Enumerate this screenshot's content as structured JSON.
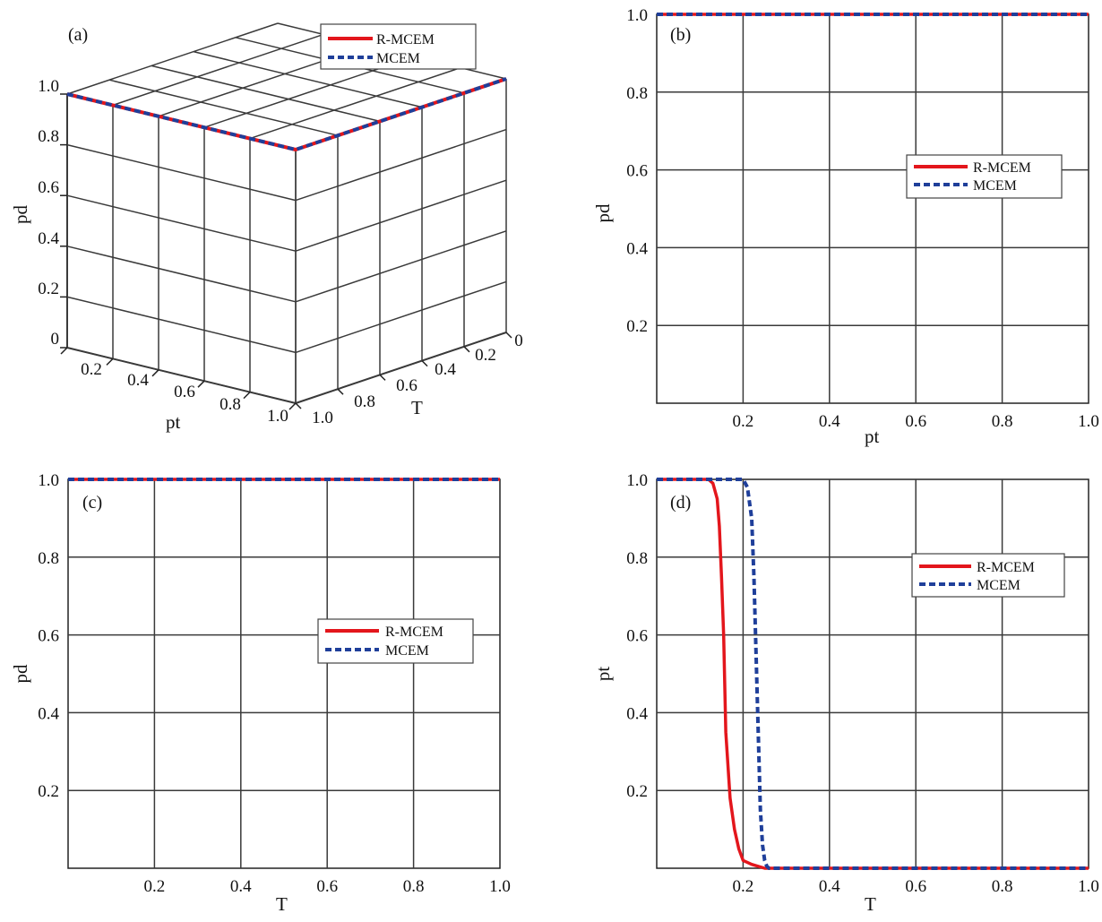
{
  "colors": {
    "r_mcem": "#e3161c",
    "mcem": "#1f3f9a",
    "grid": "#3a3a3a",
    "axis": "#222222"
  },
  "legend_labels": [
    "R-MCEM",
    "MCEM"
  ],
  "chart_data": [
    {
      "id": "a",
      "panel_label": "(a)",
      "type": "line",
      "projection": "3d",
      "xlabel": "pt",
      "ylabel": "T",
      "zlabel": "pd",
      "xticks": [
        "0.2",
        "0.4",
        "0.6",
        "0.8",
        "1.0"
      ],
      "yticks": [
        "0",
        "0.2",
        "0.4",
        "0.6",
        "0.8",
        "1.0"
      ],
      "zticks": [
        "0",
        "0.2",
        "0.4",
        "0.6",
        "0.8",
        "1.0"
      ],
      "xlim": [
        0,
        1
      ],
      "ylim": [
        0,
        1
      ],
      "zlim": [
        0,
        1
      ],
      "grid": true,
      "legend_position": "top-right",
      "series": [
        {
          "name": "R-MCEM",
          "style": "solid",
          "points": [
            [
              0,
              1,
              1
            ],
            [
              1,
              1,
              1
            ],
            [
              1,
              0.2,
              1
            ],
            [
              1,
              0,
              1
            ]
          ]
        },
        {
          "name": "MCEM",
          "style": "dashed",
          "points": [
            [
              0,
              1,
              1
            ],
            [
              1,
              1,
              1
            ],
            [
              1,
              0.25,
              1
            ],
            [
              1,
              0,
              1
            ]
          ]
        }
      ]
    },
    {
      "id": "b",
      "panel_label": "(b)",
      "type": "line",
      "xlabel": "pt",
      "ylabel": "pd",
      "xlim": [
        0,
        1
      ],
      "ylim": [
        0,
        1
      ],
      "xticks": [
        "0.2",
        "0.4",
        "0.6",
        "0.8",
        "1.0"
      ],
      "yticks": [
        "0.2",
        "0.4",
        "0.6",
        "0.8",
        "1.0"
      ],
      "grid": true,
      "legend_position": "center-right",
      "series": [
        {
          "name": "R-MCEM",
          "style": "solid",
          "x": [
            0,
            1
          ],
          "y": [
            1,
            1
          ]
        },
        {
          "name": "MCEM",
          "style": "dashed",
          "x": [
            0,
            1
          ],
          "y": [
            1,
            1
          ]
        }
      ]
    },
    {
      "id": "c",
      "panel_label": "(c)",
      "type": "line",
      "xlabel": "T",
      "ylabel": "pd",
      "xlim": [
        0,
        1
      ],
      "ylim": [
        0,
        1
      ],
      "xticks": [
        "0.2",
        "0.4",
        "0.6",
        "0.8",
        "1.0"
      ],
      "yticks": [
        "0.2",
        "0.4",
        "0.6",
        "0.8",
        "1.0"
      ],
      "grid": true,
      "legend_position": "center-right",
      "series": [
        {
          "name": "R-MCEM",
          "style": "solid",
          "x": [
            0,
            1
          ],
          "y": [
            1,
            1
          ]
        },
        {
          "name": "MCEM",
          "style": "dashed",
          "x": [
            0,
            1
          ],
          "y": [
            1,
            1
          ]
        }
      ]
    },
    {
      "id": "d",
      "panel_label": "(d)",
      "type": "line",
      "xlabel": "T",
      "ylabel": "pt",
      "xlim": [
        0,
        1
      ],
      "ylim": [
        0,
        1
      ],
      "xticks": [
        "0.2",
        "0.4",
        "0.6",
        "0.8",
        "1.0"
      ],
      "yticks": [
        "0.2",
        "0.4",
        "0.6",
        "0.8",
        "1.0"
      ],
      "grid": true,
      "legend_position": "upper-right",
      "series": [
        {
          "name": "R-MCEM",
          "style": "solid",
          "x": [
            0,
            0.12,
            0.13,
            0.14,
            0.145,
            0.15,
            0.155,
            0.16,
            0.17,
            0.18,
            0.19,
            0.2,
            0.22,
            0.25,
            0.3,
            0.6,
            1.0
          ],
          "y": [
            1,
            1,
            0.99,
            0.95,
            0.88,
            0.75,
            0.6,
            0.35,
            0.18,
            0.1,
            0.05,
            0.02,
            0.01,
            0,
            0,
            0,
            0
          ]
        },
        {
          "name": "MCEM",
          "style": "dashed",
          "x": [
            0,
            0.2,
            0.21,
            0.22,
            0.225,
            0.23,
            0.235,
            0.24,
            0.245,
            0.25,
            0.255,
            0.26,
            0.3,
            0.6,
            1.0
          ],
          "y": [
            1,
            1,
            0.98,
            0.9,
            0.75,
            0.55,
            0.35,
            0.15,
            0.06,
            0.02,
            0.005,
            0,
            0,
            0,
            0
          ]
        }
      ]
    }
  ]
}
